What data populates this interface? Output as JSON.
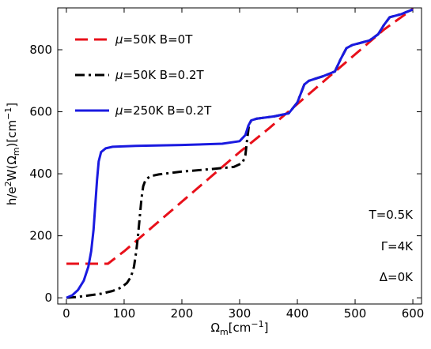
{
  "chart_data": {
    "type": "line",
    "title": "",
    "xlabel_main": "Ω",
    "xlabel_sub": "m",
    "xlabel_rest": "[cm",
    "xlabel_sup": "−1",
    "xlabel_end": "]",
    "ylabel_a": "h/e",
    "ylabel_sup2": "2",
    "ylabel_b": "W(Ω",
    "ylabel_sub": "m",
    "ylabel_c": ")[cm",
    "ylabel_sup": "−1",
    "ylabel_d": "]",
    "xlim": [
      -15,
      615
    ],
    "ylim": [
      -20,
      935
    ],
    "xticks": [
      0,
      100,
      200,
      300,
      400,
      500,
      600
    ],
    "yticks": [
      0,
      200,
      400,
      600,
      800
    ],
    "grid": false,
    "legend_position": "top-left",
    "series": [
      {
        "name": "μ=50K  B=0T",
        "legend_mu": "μ",
        "legend_rest": "=50K  B=0T",
        "color": "#e8101a",
        "dash": "dash",
        "points": [
          [
            0,
            110
          ],
          [
            72,
            110
          ],
          [
            100,
            150
          ],
          [
            150,
            230
          ],
          [
            200,
            310
          ],
          [
            250,
            390
          ],
          [
            300,
            470
          ],
          [
            350,
            545
          ],
          [
            400,
            625
          ],
          [
            450,
            705
          ],
          [
            500,
            785
          ],
          [
            550,
            865
          ],
          [
            600,
            932
          ]
        ]
      },
      {
        "name": "μ=50K  B=0.2T",
        "legend_mu": "μ",
        "legend_rest": "=50K  B=0.2T",
        "color": "#000000",
        "dash": "dashdot",
        "points": [
          [
            0,
            0
          ],
          [
            20,
            3
          ],
          [
            40,
            8
          ],
          [
            60,
            13
          ],
          [
            80,
            22
          ],
          [
            95,
            33
          ],
          [
            105,
            48
          ],
          [
            112,
            68
          ],
          [
            117,
            100
          ],
          [
            121,
            150
          ],
          [
            124,
            200
          ],
          [
            127,
            260
          ],
          [
            130,
            320
          ],
          [
            133,
            360
          ],
          [
            137,
            380
          ],
          [
            145,
            392
          ],
          [
            160,
            398
          ],
          [
            200,
            407
          ],
          [
            250,
            415
          ],
          [
            290,
            422
          ],
          [
            305,
            435
          ],
          [
            310,
            460
          ],
          [
            313,
            510
          ],
          [
            316,
            555
          ],
          [
            320,
            572
          ],
          [
            330,
            578
          ],
          [
            360,
            585
          ],
          [
            385,
            595
          ],
          [
            400,
            630
          ],
          [
            412,
            688
          ],
          [
            420,
            700
          ],
          [
            445,
            715
          ],
          [
            465,
            730
          ],
          [
            475,
            770
          ],
          [
            485,
            805
          ],
          [
            495,
            815
          ],
          [
            525,
            830
          ],
          [
            540,
            850
          ],
          [
            550,
            880
          ],
          [
            560,
            905
          ],
          [
            580,
            915
          ],
          [
            600,
            930
          ]
        ]
      },
      {
        "name": "μ=250K  B=0.2T",
        "legend_mu": "μ",
        "legend_rest": "=250K  B=0.2T",
        "color": "#1a1ae0",
        "dash": "solid",
        "points": [
          [
            0,
            0
          ],
          [
            10,
            8
          ],
          [
            20,
            25
          ],
          [
            30,
            55
          ],
          [
            38,
            100
          ],
          [
            43,
            150
          ],
          [
            47,
            220
          ],
          [
            50,
            300
          ],
          [
            53,
            380
          ],
          [
            56,
            440
          ],
          [
            60,
            470
          ],
          [
            68,
            482
          ],
          [
            80,
            487
          ],
          [
            120,
            490
          ],
          [
            200,
            493
          ],
          [
            270,
            497
          ],
          [
            300,
            505
          ],
          [
            310,
            525
          ],
          [
            315,
            555
          ],
          [
            320,
            572
          ],
          [
            330,
            578
          ],
          [
            360,
            585
          ],
          [
            385,
            595
          ],
          [
            400,
            630
          ],
          [
            412,
            688
          ],
          [
            420,
            700
          ],
          [
            445,
            715
          ],
          [
            465,
            730
          ],
          [
            475,
            770
          ],
          [
            485,
            805
          ],
          [
            495,
            815
          ],
          [
            525,
            830
          ],
          [
            540,
            850
          ],
          [
            550,
            880
          ],
          [
            560,
            905
          ],
          [
            580,
            915
          ],
          [
            600,
            930
          ]
        ]
      }
    ],
    "annotations": [
      {
        "text": "T=0.5K"
      },
      {
        "text": "Γ=4K"
      },
      {
        "text": "Δ=0K"
      }
    ]
  }
}
